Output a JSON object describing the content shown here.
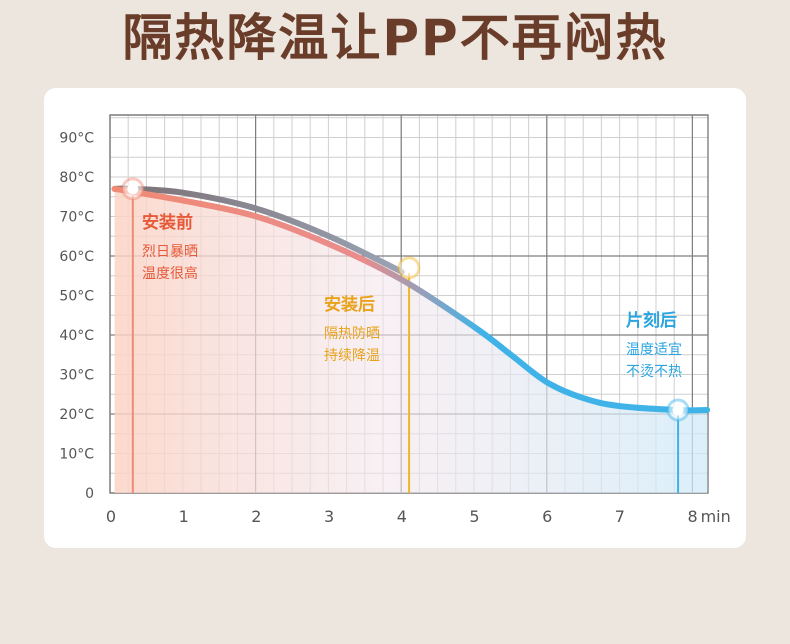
{
  "headline": "隔热降温让PP不再闷热",
  "colors": {
    "before": "#f08a74",
    "after": "#f0b52a",
    "later": "#3fb3e8",
    "title": "#6a3d2b",
    "before_text": "#e65a3a",
    "after_text": "#e9a21b",
    "later_text": "#2aa5e0"
  },
  "notes": [
    {
      "key": "before",
      "heading": "安装前",
      "lines": [
        "烈日暴晒",
        "温度很高"
      ]
    },
    {
      "key": "after",
      "heading": "安装后",
      "lines": [
        "隔热防晒",
        "持续降温"
      ]
    },
    {
      "key": "later",
      "heading": "片刻后",
      "lines": [
        "温度适宜",
        "不烫不热"
      ]
    }
  ],
  "chart_data": {
    "type": "line",
    "title": "",
    "xlabel": "min",
    "ylabel": "",
    "xlim": [
      0,
      8.2
    ],
    "ylim": [
      0,
      92
    ],
    "x_ticks": [
      "0",
      "1",
      "2",
      "3",
      "4",
      "5",
      "6",
      "7",
      "8"
    ],
    "y_ticks": [
      "0",
      "10°C",
      "20°C",
      "30°C",
      "40°C",
      "50°C",
      "60°C",
      "70°C",
      "80°C",
      "90°C"
    ],
    "grid": true,
    "series": [
      {
        "key": "before",
        "x": [
          0.05,
          0.3,
          1,
          2,
          3,
          4
        ],
        "y": [
          77,
          77,
          76,
          72,
          65,
          56
        ]
      },
      {
        "key": "after",
        "x": [
          0.05,
          1,
          2,
          3,
          4,
          5,
          5.5,
          6,
          6.5,
          7,
          7.8,
          8.2
        ],
        "y": [
          77,
          74,
          70,
          63,
          54,
          42,
          35,
          28,
          24,
          22,
          21,
          21
        ]
      }
    ],
    "markers": [
      {
        "key": "before",
        "x": 0.3,
        "y": 77
      },
      {
        "key": "after",
        "x": 4.1,
        "y": 57
      },
      {
        "key": "later",
        "x": 7.8,
        "y": 21
      }
    ]
  }
}
